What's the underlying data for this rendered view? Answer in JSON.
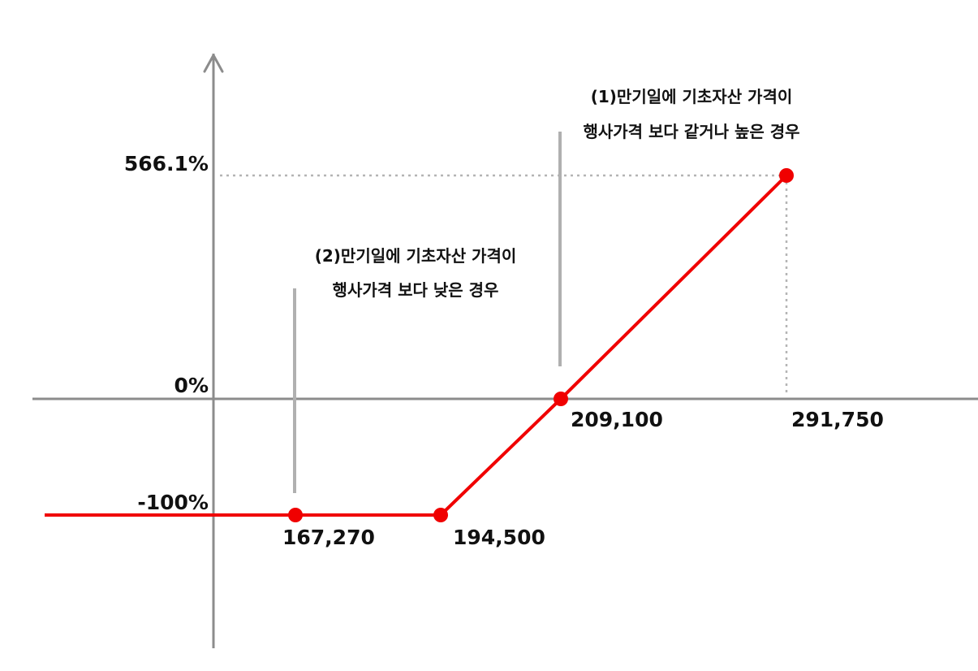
{
  "chart_data": {
    "type": "line",
    "x_tick_labels": [
      "167,270",
      "194,500",
      "209,100",
      "291,750"
    ],
    "y_tick_labels": [
      "566.1%",
      "0%",
      "-100%"
    ],
    "series": [
      {
        "x": [
          160000,
          167270,
          194500,
          209100,
          291750
        ],
        "y": [
          -100,
          -100,
          -100,
          0,
          566.1
        ],
        "color": "#f00000"
      }
    ],
    "marked_x": [
      167270,
      194500,
      209100,
      291750
    ],
    "annotations": [
      {
        "line1": "(1)만기일에 기초자산 가격이",
        "line2": "행사가격 보다 같거나 높은 경우",
        "x": 209100
      },
      {
        "line1": "(2)만기일에 기초자산 가격이",
        "line2": "행사가격 보다 낮은 경우",
        "x": 167270
      }
    ],
    "colors": {
      "axis": "#8c8c8c",
      "payoff": "#f00000",
      "guide": "#b4b4b4",
      "text": "#111111"
    },
    "legend": "none",
    "grid": false
  }
}
